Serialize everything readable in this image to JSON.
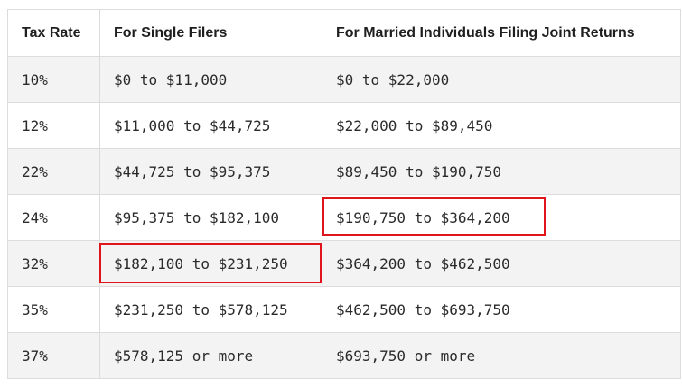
{
  "table": {
    "headers": [
      "Tax Rate",
      "For Single Filers",
      "For Married Individuals Filing Joint Returns"
    ],
    "rows": [
      [
        "10%",
        "$0 to $11,000",
        "$0 to $22,000"
      ],
      [
        "12%",
        "$11,000 to $44,725",
        "$22,000 to $89,450"
      ],
      [
        "22%",
        "$44,725 to $95,375",
        "$89,450 to $190,750"
      ],
      [
        "24%",
        "$95,375 to $182,100",
        "$190,750 to $364,200"
      ],
      [
        "32%",
        "$182,100 to $231,250",
        "$364,200 to $462,500"
      ],
      [
        "35%",
        "$231,250 to $578,125",
        "$462,500 to $693,750"
      ],
      [
        "37%",
        "$578,125 or more",
        "$693,750 or more"
      ]
    ]
  },
  "highlights": {
    "color": "#e0141b",
    "cells": [
      {
        "row": 3,
        "col": 2
      },
      {
        "row": 4,
        "col": 1
      }
    ]
  }
}
